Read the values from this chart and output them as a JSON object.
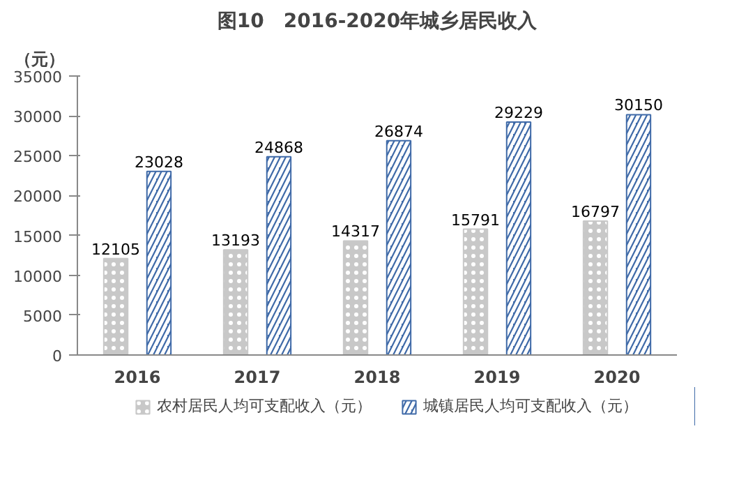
{
  "chart_data": {
    "type": "bar",
    "title": "图10　2016-2020年城乡居民收入",
    "ylabel": "（元）",
    "categories": [
      "2016",
      "2017",
      "2018",
      "2019",
      "2020"
    ],
    "series": [
      {
        "name": "农村居民人均可支配收入（元）",
        "color": "#c8c8c8",
        "values": [
          12105,
          13193,
          14317,
          15791,
          16797
        ]
      },
      {
        "name": "城镇居民人均可支配收入（元）",
        "color": "#3f6aa8",
        "values": [
          23028,
          24868,
          26874,
          29229,
          30150
        ]
      }
    ],
    "ylim": [
      0,
      35000
    ],
    "yticks": [
      0,
      5000,
      10000,
      15000,
      20000,
      25000,
      30000,
      35000
    ],
    "data_labels": true,
    "legend": "bottom",
    "grid": false
  }
}
